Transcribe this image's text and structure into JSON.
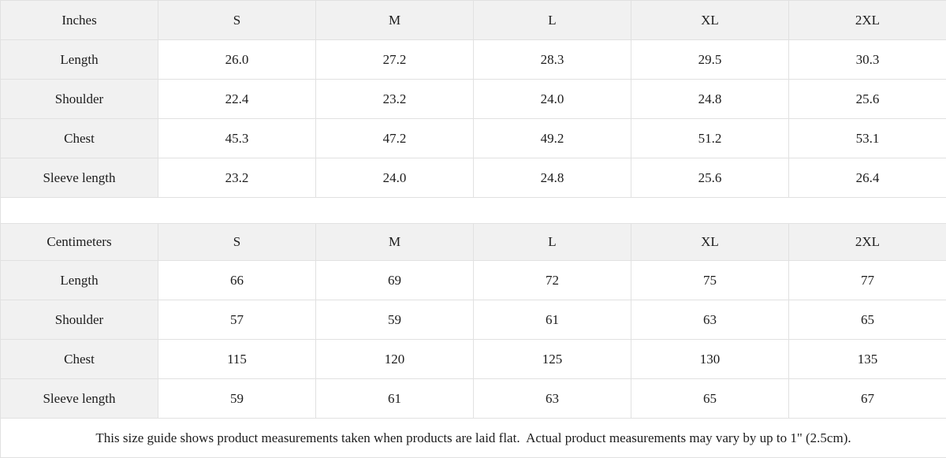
{
  "page": {
    "background": "#ffffff",
    "border_color": "#e1e1e1",
    "shaded_cell_bg": "#f1f1f1",
    "text_color": "#1c1c1c"
  },
  "size_guide": {
    "sections": [
      {
        "unit": "Inches",
        "sizes": [
          "S",
          "M",
          "L",
          "XL",
          "2XL"
        ],
        "rows": [
          {
            "label": "Length",
            "values": [
              "26.0",
              "27.2",
              "28.3",
              "29.5",
              "30.3"
            ]
          },
          {
            "label": "Shoulder",
            "values": [
              "22.4",
              "23.2",
              "24.0",
              "24.8",
              "25.6"
            ]
          },
          {
            "label": "Chest",
            "values": [
              "45.3",
              "47.2",
              "49.2",
              "51.2",
              "53.1"
            ]
          },
          {
            "label": "Sleeve length",
            "values": [
              "23.2",
              "24.0",
              "24.8",
              "25.6",
              "26.4"
            ]
          }
        ]
      },
      {
        "unit": "Centimeters",
        "sizes": [
          "S",
          "M",
          "L",
          "XL",
          "2XL"
        ],
        "rows": [
          {
            "label": "Length",
            "values": [
              "66",
              "69",
              "72",
              "75",
              "77"
            ]
          },
          {
            "label": "Shoulder",
            "values": [
              "57",
              "59",
              "61",
              "63",
              "65"
            ]
          },
          {
            "label": "Chest",
            "values": [
              "115",
              "120",
              "125",
              "130",
              "135"
            ]
          },
          {
            "label": "Sleeve length",
            "values": [
              "59",
              "61",
              "63",
              "65",
              "67"
            ]
          }
        ]
      }
    ],
    "footnote": "This size guide shows product measurements taken when products are laid flat.  Actual product measurements may vary by up to 1\" (2.5cm)."
  }
}
